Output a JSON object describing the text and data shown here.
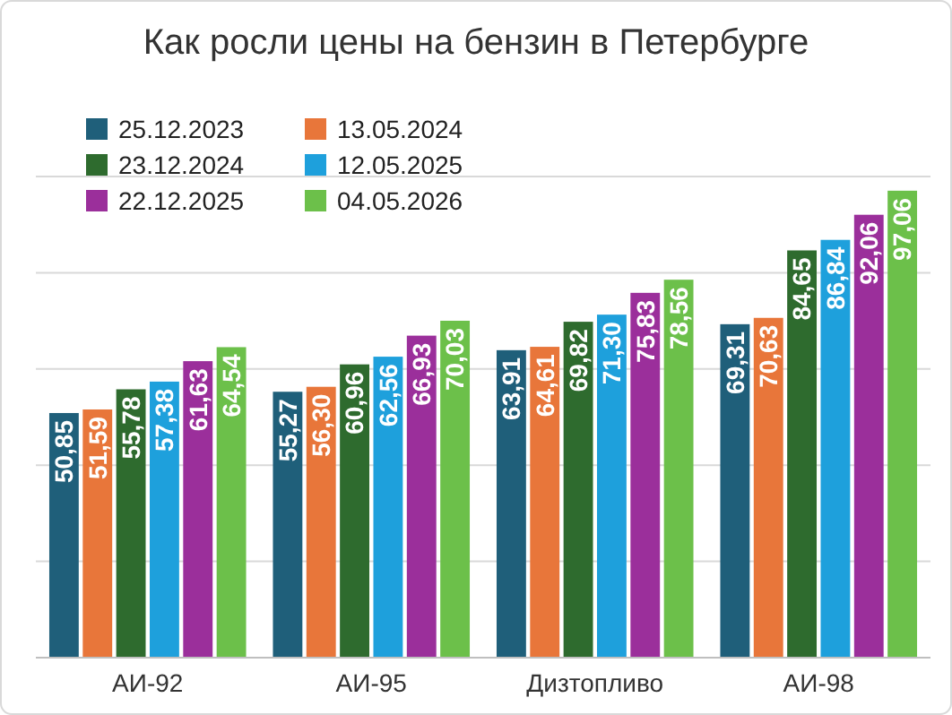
{
  "chart_data": {
    "type": "bar",
    "title": "Как росли цены на бензин в Петербурге",
    "categories": [
      "АИ-92",
      "АИ-95",
      "Дизтопливо",
      "АИ-98"
    ],
    "series": [
      {
        "name": "25.12.2023",
        "color": "#1f5f7a",
        "values": [
          50.85,
          55.27,
          63.91,
          69.31
        ],
        "value_labels": [
          "50,85",
          "55,27",
          "63,91",
          "69,31"
        ]
      },
      {
        "name": "13.05.2024",
        "color": "#e8763a",
        "values": [
          51.59,
          56.3,
          64.61,
          70.63
        ],
        "value_labels": [
          "51,59",
          "56,30",
          "64,61",
          "70,63"
        ]
      },
      {
        "name": "23.12.2024",
        "color": "#2e6b2e",
        "values": [
          55.78,
          60.96,
          69.82,
          84.65
        ],
        "value_labels": [
          "55,78",
          "60,96",
          "69,82",
          "84,65"
        ]
      },
      {
        "name": "12.05.2025",
        "color": "#1ea0dc",
        "values": [
          57.38,
          62.56,
          71.3,
          86.84
        ],
        "value_labels": [
          "57,38",
          "62,56",
          "71,30",
          "86,84"
        ]
      },
      {
        "name": "22.12.2025",
        "color": "#9b2f9b",
        "values": [
          61.63,
          66.93,
          75.83,
          92.06
        ],
        "value_labels": [
          "61,63",
          "66,93",
          "75,83",
          "92,06"
        ]
      },
      {
        "name": "04.05.2026",
        "color": "#6cc04a",
        "values": [
          64.54,
          70.03,
          78.56,
          97.06
        ],
        "value_labels": [
          "64,54",
          "70,03",
          "78,56",
          "97,06"
        ]
      }
    ],
    "tick_labels": "x",
    "grid": "y",
    "legend": "top left"
  }
}
